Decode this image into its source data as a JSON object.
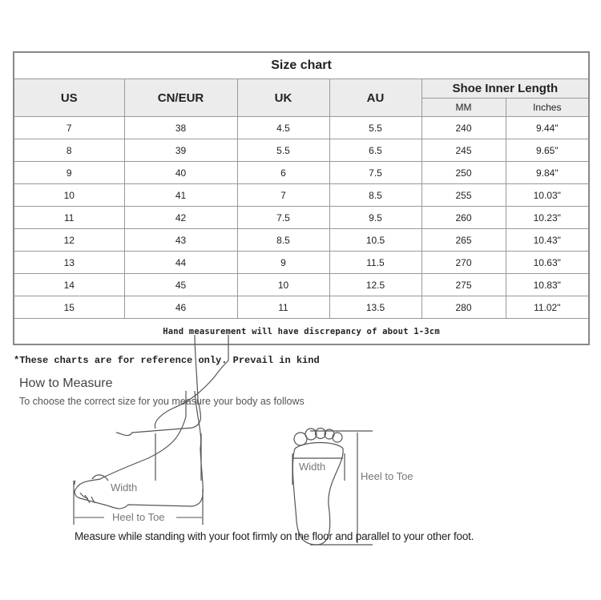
{
  "table": {
    "title": "Size chart",
    "headers": [
      "US",
      "CN/EUR",
      "UK",
      "AU"
    ],
    "group_header": "Shoe Inner Length",
    "sub_headers": [
      "MM",
      "Inches"
    ],
    "rows": [
      [
        "7",
        "38",
        "4.5",
        "5.5",
        "240",
        "9.44\""
      ],
      [
        "8",
        "39",
        "5.5",
        "6.5",
        "245",
        "9.65\""
      ],
      [
        "9",
        "40",
        "6",
        "7.5",
        "250",
        "9.84\""
      ],
      [
        "10",
        "41",
        "7",
        "8.5",
        "255",
        "10.03\""
      ],
      [
        "11",
        "42",
        "7.5",
        "9.5",
        "260",
        "10.23\""
      ],
      [
        "12",
        "43",
        "8.5",
        "10.5",
        "265",
        "10.43\""
      ],
      [
        "13",
        "44",
        "9",
        "11.5",
        "270",
        "10.63\""
      ],
      [
        "14",
        "45",
        "10",
        "12.5",
        "275",
        "10.83\""
      ],
      [
        "15",
        "46",
        "11",
        "13.5",
        "280",
        "11.02\""
      ]
    ],
    "footer": "Hand measurement will have discrepancy of about 1-3cm"
  },
  "note": "*These charts are for reference only. Prevail in kind",
  "how": {
    "title": "How to Measure",
    "subtitle": "To choose the correct size for you measure your body as follows",
    "side_width": "Width",
    "side_length": "Heel to Toe",
    "sole_width": "Width",
    "sole_length": "Heel to Toe",
    "caption": "Measure while standing with your foot firmly on the floor and parallel to your other foot."
  }
}
